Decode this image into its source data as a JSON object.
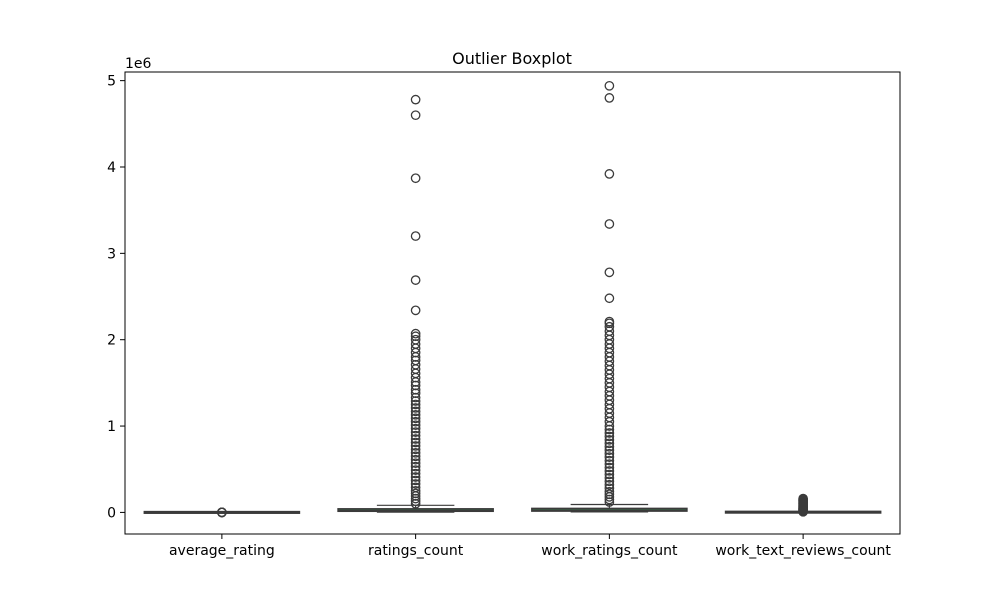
{
  "chart_data": {
    "type": "boxplot",
    "title": "Outlier Boxplot",
    "categories": [
      "average_rating",
      "ratings_count",
      "work_ratings_count",
      "work_text_reviews_count"
    ],
    "y_offset_label": "1e6",
    "ylim": [
      -250000,
      5100000
    ],
    "yticks": [
      0,
      1000000,
      2000000,
      3000000,
      4000000,
      5000000
    ],
    "ytick_labels": [
      "0",
      "1",
      "2",
      "3",
      "4",
      "5"
    ],
    "box_color": "#3b3b3b",
    "median_color": "#3d7a4c",
    "grid": false,
    "boxes": [
      {
        "name": "average_rating",
        "q1": 3.85,
        "median": 4.02,
        "q3": 4.17,
        "whisker_low": 3.37,
        "whisker_high": 4.65,
        "outliers": [
          2.47,
          2.8,
          3.1,
          4.7,
          4.77,
          4.82
        ]
      },
      {
        "name": "ratings_count",
        "q1": 13570,
        "median": 21155,
        "q3": 41053,
        "whisker_low": 2716,
        "whisker_high": 82270,
        "outliers": [
          4780000,
          4600000,
          3870000,
          3200000,
          2690000,
          2340000,
          2070000,
          2040000,
          2000000,
          1950000,
          1900000,
          1850000,
          1800000,
          1760000,
          1710000,
          1660000,
          1610000,
          1560000,
          1510000,
          1470000,
          1420000,
          1380000,
          1330000,
          1290000,
          1250000,
          1210000,
          1170000,
          1130000,
          1090000,
          1050000,
          1010000,
          970000,
          930000,
          890000,
          850000,
          810000,
          770000,
          730000,
          690000,
          650000,
          610000,
          570000,
          530000,
          490000,
          450000,
          410000,
          370000,
          330000,
          290000,
          250000,
          220000,
          190000,
          160000,
          130000,
          100000
        ]
      },
      {
        "name": "work_ratings_count",
        "q1": 15570,
        "median": 23832,
        "q3": 45915,
        "whisker_low": 5510,
        "whisker_high": 91400,
        "outliers": [
          4940000,
          4800000,
          3920000,
          3340000,
          2780000,
          2480000,
          2210000,
          2190000,
          2150000,
          2100000,
          2050000,
          2000000,
          1950000,
          1900000,
          1850000,
          1800000,
          1750000,
          1700000,
          1650000,
          1600000,
          1550000,
          1500000,
          1450000,
          1400000,
          1350000,
          1300000,
          1250000,
          1200000,
          1150000,
          1100000,
          1050000,
          1000000,
          960000,
          920000,
          880000,
          840000,
          800000,
          760000,
          720000,
          680000,
          640000,
          600000,
          560000,
          520000,
          480000,
          440000,
          400000,
          360000,
          320000,
          280000,
          240000,
          210000,
          180000,
          150000,
          120000
        ]
      },
      {
        "name": "work_text_reviews_count",
        "q1": 694,
        "median": 1402,
        "q3": 2744,
        "whisker_low": 3,
        "whisker_high": 5820,
        "outliers": [
          160000,
          150000,
          140000,
          130000,
          120000,
          110000,
          100000,
          90000,
          80000,
          70000,
          60000,
          50000,
          42000,
          35000,
          28000,
          22000,
          17000,
          13000,
          9500,
          7000
        ]
      }
    ]
  }
}
